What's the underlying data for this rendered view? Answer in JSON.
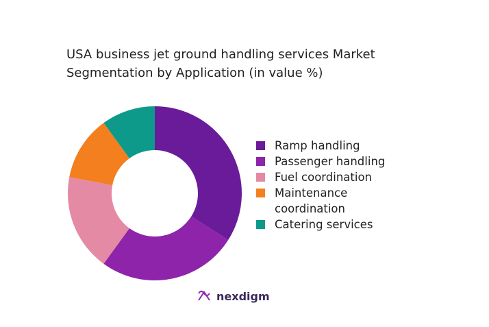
{
  "chart_data": {
    "type": "donut",
    "title": "USA business jet ground handling services Market Segmentation by Application (in value %)",
    "categories": [
      "Ramp handling",
      "Passenger handling",
      "Fuel coordination",
      "Maintenance coordination",
      "Catering services"
    ],
    "values": [
      34,
      26,
      18,
      12,
      10
    ],
    "colors": [
      "#6a1b9a",
      "#8e24aa",
      "#e48aa4",
      "#f47f1f",
      "#0e9a8a"
    ],
    "legend": "right"
  },
  "logo": "nexdigm"
}
